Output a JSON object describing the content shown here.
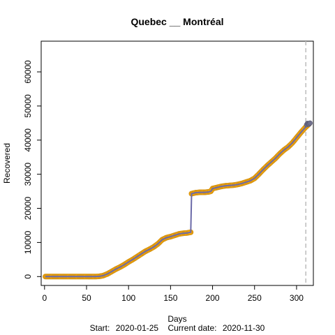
{
  "chart_data": {
    "type": "line",
    "title": "Quebec __ Montréal",
    "xlabel": "Days",
    "ylabel": "Recovered",
    "footer": {
      "start_label": "Start:",
      "start_date": "2020-01-25",
      "current_label": "Current date:",
      "current_date": "2020-11-30"
    },
    "xlim": [
      -4,
      320
    ],
    "ylim": [
      -2600,
      69000
    ],
    "x_ticks": [
      0,
      50,
      100,
      150,
      200,
      250,
      300
    ],
    "y_ticks": [
      0,
      10000,
      20000,
      30000,
      40000,
      50000,
      60000
    ],
    "vline_x": 311,
    "grid": false,
    "colors": {
      "line": "#6b6aa8",
      "points": "#f0a30a",
      "points_edge": "#d89410",
      "tail_points": "#70708c",
      "vline": "#bbbbbb",
      "axis": "#000000"
    },
    "series": [
      {
        "values_xy": [
          [
            1,
            0
          ],
          [
            10,
            0
          ],
          [
            20,
            0
          ],
          [
            30,
            0
          ],
          [
            40,
            0
          ],
          [
            50,
            0
          ],
          [
            60,
            0
          ],
          [
            65,
            50
          ],
          [
            70,
            300
          ],
          [
            75,
            800
          ],
          [
            80,
            1500
          ],
          [
            85,
            2200
          ],
          [
            90,
            2800
          ],
          [
            95,
            3500
          ],
          [
            100,
            4300
          ],
          [
            105,
            5000
          ],
          [
            110,
            5800
          ],
          [
            115,
            6600
          ],
          [
            120,
            7400
          ],
          [
            125,
            8000
          ],
          [
            130,
            8700
          ],
          [
            135,
            9600
          ],
          [
            140,
            10800
          ],
          [
            145,
            11400
          ],
          [
            150,
            11700
          ],
          [
            155,
            12100
          ],
          [
            160,
            12500
          ],
          [
            165,
            12700
          ],
          [
            170,
            12800
          ],
          [
            174,
            13000
          ],
          [
            175,
            24300
          ],
          [
            180,
            24600
          ],
          [
            185,
            24700
          ],
          [
            190,
            24700
          ],
          [
            195,
            24800
          ],
          [
            198,
            25000
          ],
          [
            200,
            25800
          ],
          [
            205,
            26100
          ],
          [
            210,
            26400
          ],
          [
            215,
            26600
          ],
          [
            220,
            26700
          ],
          [
            225,
            26800
          ],
          [
            230,
            27000
          ],
          [
            235,
            27300
          ],
          [
            240,
            27700
          ],
          [
            245,
            28100
          ],
          [
            250,
            28800
          ],
          [
            255,
            30000
          ],
          [
            260,
            31300
          ],
          [
            265,
            32500
          ],
          [
            270,
            33600
          ],
          [
            275,
            34700
          ],
          [
            280,
            36000
          ],
          [
            285,
            37100
          ],
          [
            290,
            38000
          ],
          [
            295,
            39200
          ],
          [
            300,
            40700
          ],
          [
            305,
            42200
          ],
          [
            310,
            43600
          ],
          [
            313,
            44300
          ],
          [
            315,
            44800
          ]
        ],
        "tail_xy": [
          [
            312,
            44500
          ],
          [
            313,
            44900
          ],
          [
            314,
            44800
          ],
          [
            315,
            44700
          ],
          [
            316,
            45000
          ]
        ]
      }
    ]
  }
}
